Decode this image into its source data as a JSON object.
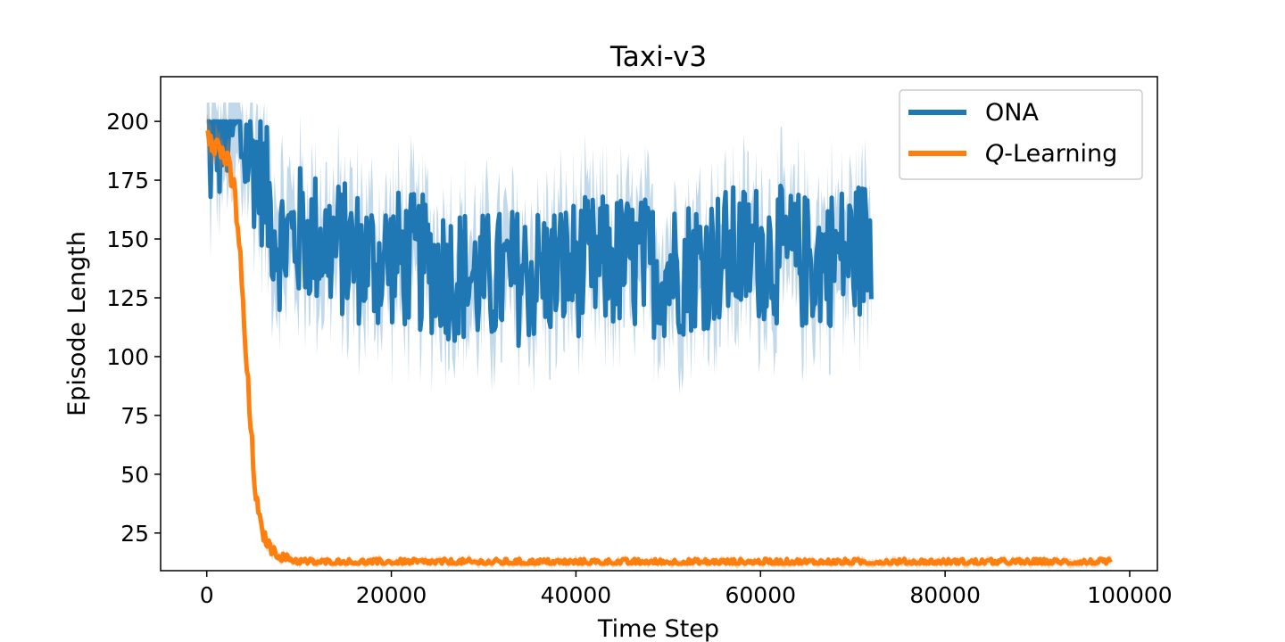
{
  "chart_data": {
    "type": "line",
    "title": "Taxi-v3",
    "xlabel": "Time Step",
    "ylabel": "Episode Length",
    "xlim": [
      -5000,
      103000
    ],
    "ylim": [
      9,
      219
    ],
    "xticks": [
      0,
      20000,
      40000,
      60000,
      80000,
      100000
    ],
    "xtick_labels": [
      "0",
      "20000",
      "40000",
      "60000",
      "80000",
      "100000"
    ],
    "yticks": [
      25,
      50,
      75,
      100,
      125,
      150,
      175,
      200
    ],
    "ytick_labels": [
      "25",
      "50",
      "75",
      "100",
      "125",
      "150",
      "175",
      "200"
    ],
    "grid": false,
    "legend_position": "top-right",
    "series": [
      {
        "name": "ONA",
        "color": "#1f77b4",
        "x": [
          0,
          500,
          1000,
          1500,
          2000,
          2500,
          3000,
          4000,
          5000,
          6000,
          7000,
          8000,
          10000,
          12000,
          15000,
          18000,
          20000,
          25000,
          30000,
          35000,
          40000,
          45000,
          50000,
          55000,
          60000,
          65000,
          70000,
          72000
        ],
        "values": [
          200,
          185,
          198,
          192,
          200,
          199,
          197,
          190,
          185,
          176,
          160,
          148,
          152,
          150,
          145,
          140,
          142,
          138,
          132,
          135,
          138,
          140,
          137,
          142,
          145,
          140,
          145,
          148
        ],
        "noise": 30,
        "band": 20
      },
      {
        "legend_label": "-Learning",
        "legend_italic": "Q",
        "color": "#ff7f0e",
        "x": [
          0,
          1000,
          2000,
          3000,
          3500,
          4000,
          4500,
          5000,
          5500,
          6000,
          7000,
          8000,
          9000,
          10000,
          12000,
          20000,
          40000,
          60000,
          80000,
          98000
        ],
        "values": [
          198,
          190,
          185,
          170,
          150,
          115,
          85,
          55,
          35,
          25,
          18,
          15,
          14,
          13,
          12.5,
          12.5,
          12.5,
          12.5,
          12.5,
          12.5
        ],
        "noise": 6,
        "band": 6
      }
    ]
  }
}
